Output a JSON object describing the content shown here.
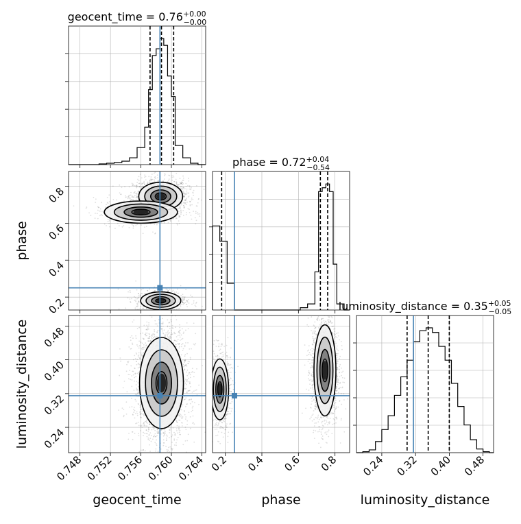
{
  "chart_data": {
    "type": "corner",
    "parameters": [
      "geocent_time",
      "phase",
      "luminosity_distance"
    ],
    "truths": {
      "geocent_time": 0.7585,
      "phase": 0.25,
      "luminosity_distance": 0.315
    },
    "grid": true,
    "titles": [
      {
        "param": "geocent_time",
        "prefix": "geocent_time = 0.76",
        "sup": "+0.00",
        "sub": "−0.00"
      },
      {
        "param": "phase",
        "prefix": "phase = 0.72",
        "sup": "+0.04",
        "sub": "−0.54"
      },
      {
        "param": "luminosity_distance",
        "prefix": "luminosity_distance = 0.35",
        "sup": "+0.05",
        "sub": "−0.05"
      }
    ],
    "axis_labels": {
      "geocent_time": "geocent_time",
      "phase": "phase",
      "luminosity_distance": "luminosity_distance"
    },
    "ranges": {
      "geocent_time": [
        0.7465,
        0.7645
      ],
      "phase": [
        0.13,
        0.88
      ],
      "luminosity_distance": [
        0.18,
        0.505
      ]
    },
    "ticks": {
      "geocent_time": [
        "0.748",
        "0.752",
        "0.756",
        "0.760",
        "0.764"
      ],
      "phase": [
        "0.2",
        "0.4",
        "0.6",
        "0.8"
      ],
      "luminosity_distance": [
        "0.24",
        "0.32",
        "0.40",
        "0.48"
      ]
    },
    "tick_values": {
      "geocent_time": [
        0.748,
        0.752,
        0.756,
        0.76,
        0.764
      ],
      "phase": [
        0.2,
        0.4,
        0.6,
        0.8
      ],
      "luminosity_distance": [
        0.24,
        0.32,
        0.4,
        0.48
      ]
    },
    "quantiles": {
      "geocent_time": [
        0.7572,
        0.7587,
        0.7603
      ],
      "phase": [
        0.18,
        0.72,
        0.76
      ],
      "luminosity_distance": [
        0.3,
        0.35,
        0.4
      ]
    },
    "histograms": {
      "geocent_time": {
        "edges": [
          0.7465,
          0.7475,
          0.7485,
          0.7495,
          0.7505,
          0.7515,
          0.7525,
          0.7535,
          0.7545,
          0.7555,
          0.7565,
          0.757,
          0.7575,
          0.758,
          0.7585,
          0.759,
          0.7595,
          0.76,
          0.7605,
          0.7615,
          0.7625,
          0.7635,
          0.7645
        ],
        "counts": [
          0,
          0,
          0,
          0,
          1,
          2,
          3,
          5,
          10,
          25,
          55,
          110,
          160,
          170,
          185,
          175,
          130,
          100,
          28,
          10,
          2,
          0
        ]
      },
      "phase": {
        "edges": [
          0.13,
          0.17,
          0.21,
          0.25,
          0.29,
          0.33,
          0.37,
          0.41,
          0.45,
          0.49,
          0.53,
          0.57,
          0.61,
          0.65,
          0.69,
          0.71,
          0.73,
          0.75,
          0.77,
          0.79,
          0.81,
          0.85,
          0.88
        ],
        "counts": [
          110,
          90,
          35,
          0,
          0,
          0,
          0,
          0,
          0,
          0,
          0,
          0,
          3,
          8,
          50,
          155,
          160,
          165,
          155,
          60,
          8,
          0
        ]
      },
      "luminosity_distance": {
        "edges": [
          0.18,
          0.195,
          0.21,
          0.225,
          0.24,
          0.255,
          0.27,
          0.285,
          0.3,
          0.315,
          0.33,
          0.345,
          0.36,
          0.375,
          0.39,
          0.405,
          0.42,
          0.435,
          0.45,
          0.465,
          0.48,
          0.495,
          0.505
        ],
        "counts": [
          0,
          1,
          3,
          12,
          25,
          40,
          62,
          82,
          100,
          120,
          132,
          135,
          130,
          115,
          100,
          75,
          50,
          30,
          14,
          4,
          1,
          0
        ]
      }
    },
    "density_peaks": [
      {
        "x": "geocent_time",
        "y": "phase",
        "peaks": [
          {
            "cx": 0.7586,
            "cy": 0.745,
            "sx": 0.0012,
            "sy": 0.032,
            "n": 1500
          },
          {
            "cx": 0.7586,
            "cy": 0.18,
            "sx": 0.0011,
            "sy": 0.02,
            "n": 700
          },
          {
            "cx": 0.756,
            "cy": 0.66,
            "sx": 0.002,
            "sy": 0.025,
            "n": 500
          }
        ]
      },
      {
        "x": "geocent_time",
        "y": "luminosity_distance",
        "peaks": [
          {
            "cx": 0.7587,
            "cy": 0.345,
            "sx": 0.0012,
            "sy": 0.045,
            "n": 2600
          }
        ]
      },
      {
        "x": "phase",
        "y": "luminosity_distance",
        "peaks": [
          {
            "cx": 0.17,
            "cy": 0.33,
            "sx": 0.02,
            "sy": 0.03,
            "n": 900
          },
          {
            "cx": 0.745,
            "cy": 0.375,
            "sx": 0.025,
            "sy": 0.045,
            "n": 1700
          }
        ]
      }
    ]
  }
}
